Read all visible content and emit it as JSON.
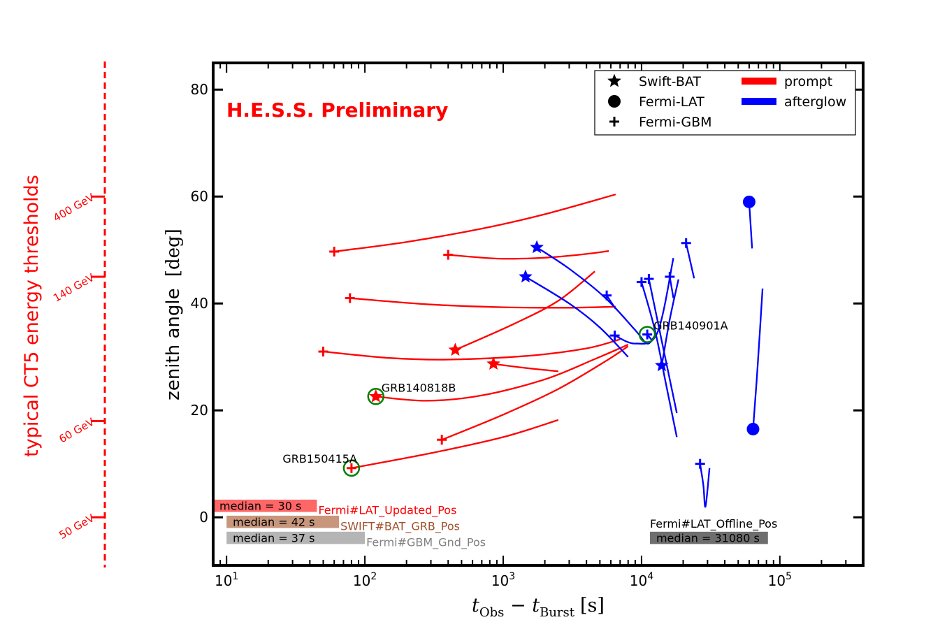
{
  "chart_data": {
    "type": "scatter",
    "title": "H.E.S.S. Preliminary",
    "xlabel": "t_Obs − t_Burst [s]",
    "xlabel_parts": {
      "t": "t",
      "sub1": "Obs",
      "minus": " − ",
      "sub2": "Burst",
      "unit": "[s]"
    },
    "ylabel": "zenith angle",
    "ylabel_unit": "[deg]",
    "x_scale": "log",
    "xlim": [
      8,
      400000
    ],
    "ylim": [
      -9,
      85
    ],
    "x_ticks": [
      {
        "value": 10,
        "mant": "10",
        "exp": "1"
      },
      {
        "value": 100,
        "mant": "10",
        "exp": "2"
      },
      {
        "value": 1000,
        "mant": "10",
        "exp": "3"
      },
      {
        "value": 10000,
        "mant": "10",
        "exp": "4"
      },
      {
        "value": 100000,
        "mant": "10",
        "exp": "5"
      }
    ],
    "y_ticks": [
      {
        "value": 0,
        "label": "0"
      },
      {
        "value": 20,
        "label": "20"
      },
      {
        "value": 40,
        "label": "40"
      },
      {
        "value": 60,
        "label": "60"
      },
      {
        "value": 80,
        "label": "80"
      }
    ],
    "legend": {
      "position": "top-right",
      "markers": [
        {
          "symbol": "star",
          "label": "Swift-BAT"
        },
        {
          "symbol": "circle",
          "label": "Fermi-LAT"
        },
        {
          "symbol": "plus",
          "label": "Fermi-GBM"
        }
      ],
      "lines": [
        {
          "color": "#ff0000",
          "label": "prompt"
        },
        {
          "color": "#0000ff",
          "label": "afterglow"
        }
      ]
    },
    "colors": {
      "prompt": "#ff0000",
      "afterglow": "#0000ff",
      "highlight": "#008000",
      "axis": "#000000"
    },
    "energy_axis": {
      "title": "typical CT5 energy thresholds",
      "ticks": [
        {
          "zenith": 0,
          "label": "50 GeV"
        },
        {
          "zenith": 18,
          "label": "60 GeV"
        },
        {
          "zenith": 45,
          "label": "140 GeV"
        },
        {
          "zenith": 60,
          "label": "400 GeV"
        }
      ],
      "color": "#ff0000"
    },
    "series": [
      {
        "name": "prompt-gbm-1",
        "group": "prompt",
        "marker": "plus",
        "points": [
          [
            60,
            49.7
          ],
          [
            200,
            51.5
          ],
          [
            700,
            54
          ],
          [
            2000,
            56.7
          ],
          [
            6500,
            60.4
          ]
        ]
      },
      {
        "name": "prompt-gbm-2",
        "group": "prompt",
        "marker": "plus",
        "points": [
          [
            400,
            49.1
          ],
          [
            900,
            48.4
          ],
          [
            1800,
            48.5
          ],
          [
            3500,
            49.1
          ],
          [
            5800,
            49.8
          ]
        ]
      },
      {
        "name": "prompt-gbm-3",
        "group": "prompt",
        "marker": "plus",
        "points": [
          [
            78,
            41
          ],
          [
            300,
            39.8
          ],
          [
            1000,
            39.3
          ],
          [
            3000,
            39.2
          ],
          [
            6500,
            39.4
          ]
        ]
      },
      {
        "name": "prompt-gbm-4",
        "group": "prompt",
        "marker": "plus",
        "points": [
          [
            50,
            31
          ],
          [
            150,
            29.8
          ],
          [
            400,
            29.5
          ],
          [
            1500,
            30.2
          ],
          [
            4000,
            31.6
          ],
          [
            7000,
            33.3
          ]
        ]
      },
      {
        "name": "prompt-bat-1",
        "group": "prompt",
        "marker": "star",
        "points": [
          [
            450,
            31.3
          ],
          [
            1200,
            36.2
          ],
          [
            2500,
            40.5
          ],
          [
            4600,
            46
          ]
        ]
      },
      {
        "name": "prompt-bat-2",
        "group": "prompt",
        "marker": "star",
        "points": [
          [
            850,
            28.7
          ],
          [
            1500,
            27.9
          ],
          [
            2500,
            27.3
          ]
        ]
      },
      {
        "name": "prompt-grb140818b",
        "group": "prompt",
        "marker": "star",
        "points": [
          [
            120,
            22.6
          ],
          [
            280,
            21.8
          ],
          [
            700,
            22.8
          ],
          [
            2000,
            25.8
          ],
          [
            4500,
            29.5
          ],
          [
            8000,
            32.3
          ]
        ]
      },
      {
        "name": "prompt-gbm-5",
        "group": "prompt",
        "marker": "plus",
        "points": [
          [
            360,
            14.5
          ],
          [
            1000,
            19.2
          ],
          [
            2500,
            24
          ],
          [
            5500,
            29.2
          ],
          [
            8000,
            32
          ]
        ]
      },
      {
        "name": "prompt-grb150415a",
        "group": "prompt",
        "marker": "plus",
        "points": [
          [
            80,
            9.2
          ],
          [
            300,
            12
          ],
          [
            1000,
            15
          ],
          [
            2500,
            18.2
          ]
        ]
      },
      {
        "name": "after-bat-1",
        "group": "afterglow",
        "marker": "star",
        "points": [
          [
            1750,
            50.5
          ],
          [
            3000,
            46.5
          ],
          [
            5500,
            41
          ],
          [
            9000,
            35
          ],
          [
            11000,
            32.5
          ],
          [
            12500,
            34
          ]
        ]
      },
      {
        "name": "after-bat-2",
        "group": "afterglow",
        "marker": "star",
        "points": [
          [
            1450,
            45
          ],
          [
            3000,
            40
          ],
          [
            5000,
            35.5
          ],
          [
            8000,
            30
          ]
        ]
      },
      {
        "name": "after-gbm-1",
        "group": "afterglow",
        "marker": "plus",
        "points": [
          [
            5600,
            41.5
          ],
          [
            6500,
            39
          ]
        ]
      },
      {
        "name": "after-gbm-2",
        "group": "afterglow",
        "marker": "plus",
        "points": [
          [
            6400,
            34
          ],
          [
            9000,
            32.5
          ],
          [
            13000,
            34.5
          ],
          [
            17000,
            48.5
          ]
        ]
      },
      {
        "name": "after-gbm-3",
        "group": "afterglow",
        "marker": "plus",
        "points": [
          [
            10000,
            44
          ],
          [
            12500,
            35
          ],
          [
            15000,
            25
          ],
          [
            18000,
            15
          ]
        ]
      },
      {
        "name": "after-gbm-4",
        "group": "afterglow",
        "marker": "plus",
        "points": [
          [
            11300,
            44.6
          ],
          [
            14000,
            33
          ],
          [
            18000,
            19.5
          ]
        ]
      },
      {
        "name": "after-bat-3",
        "group": "afterglow",
        "marker": "star",
        "points": [
          [
            14000,
            28.4
          ],
          [
            16000,
            37
          ],
          [
            18500,
            44.5
          ]
        ]
      },
      {
        "name": "after-gbm-5",
        "group": "afterglow",
        "marker": "plus",
        "points": [
          [
            16000,
            45
          ],
          [
            17000,
            41
          ]
        ]
      },
      {
        "name": "after-gbm-6",
        "group": "afterglow",
        "marker": "plus",
        "points": [
          [
            21000,
            51.3
          ],
          [
            24000,
            44.7
          ]
        ]
      },
      {
        "name": "after-grb140901a",
        "group": "afterglow",
        "marker": "plus",
        "points": [
          [
            11000,
            34.2
          ],
          [
            12000,
            33
          ]
        ]
      },
      {
        "name": "after-gbm-7",
        "group": "afterglow",
        "marker": "plus",
        "points": [
          [
            26500,
            10
          ],
          [
            28000,
            6
          ],
          [
            29000,
            2
          ],
          [
            31000,
            9.2
          ]
        ]
      },
      {
        "name": "after-lat-1",
        "group": "afterglow",
        "marker": "circle",
        "points": [
          [
            60000,
            59
          ],
          [
            63000,
            50.3
          ]
        ]
      },
      {
        "name": "after-lat-2",
        "group": "afterglow",
        "marker": "circle",
        "points": [
          [
            64000,
            16.5
          ],
          [
            69000,
            28
          ],
          [
            75000,
            42.8
          ]
        ]
      }
    ],
    "highlighted": [
      {
        "label": "GRB140818B",
        "x": 120,
        "y": 22.6,
        "label_side": "upper-right"
      },
      {
        "label": "GRB150415A",
        "x": 80,
        "y": 9.2,
        "label_side": "upper-left"
      },
      {
        "label": "GRB140901A",
        "x": 11000,
        "y": 34.2,
        "label_side": "right"
      }
    ],
    "median_bars": [
      {
        "label": "median = 30 s",
        "tag": "Fermi#LAT_Updated_Pos",
        "x_start": 8,
        "x_end": 45,
        "y_low": 1,
        "y_high": 3.3,
        "color": "#ff6666",
        "tag_color": "#ff0000"
      },
      {
        "label": "median = 42 s",
        "tag": "SWIFT#BAT_GRB_Pos",
        "x_start": 10,
        "x_end": 65,
        "y_low": -2,
        "y_high": 0.3,
        "color": "#c8967c",
        "tag_color": "#a0522d"
      },
      {
        "label": "median = 37 s",
        "tag": "Fermi#GBM_Gnd_Pos",
        "x_start": 10,
        "x_end": 100,
        "y_low": -5,
        "y_high": -2.7,
        "color": "#b5b5b5",
        "tag_color": "#808080"
      },
      {
        "label": "median = 31080 s",
        "tag": "Fermi#LAT_Offline_Pos",
        "x_start": 11500,
        "x_end": 82000,
        "y_low": -5,
        "y_high": -2.7,
        "color": "#6e6e6e",
        "tag_color": "#000000"
      }
    ]
  }
}
